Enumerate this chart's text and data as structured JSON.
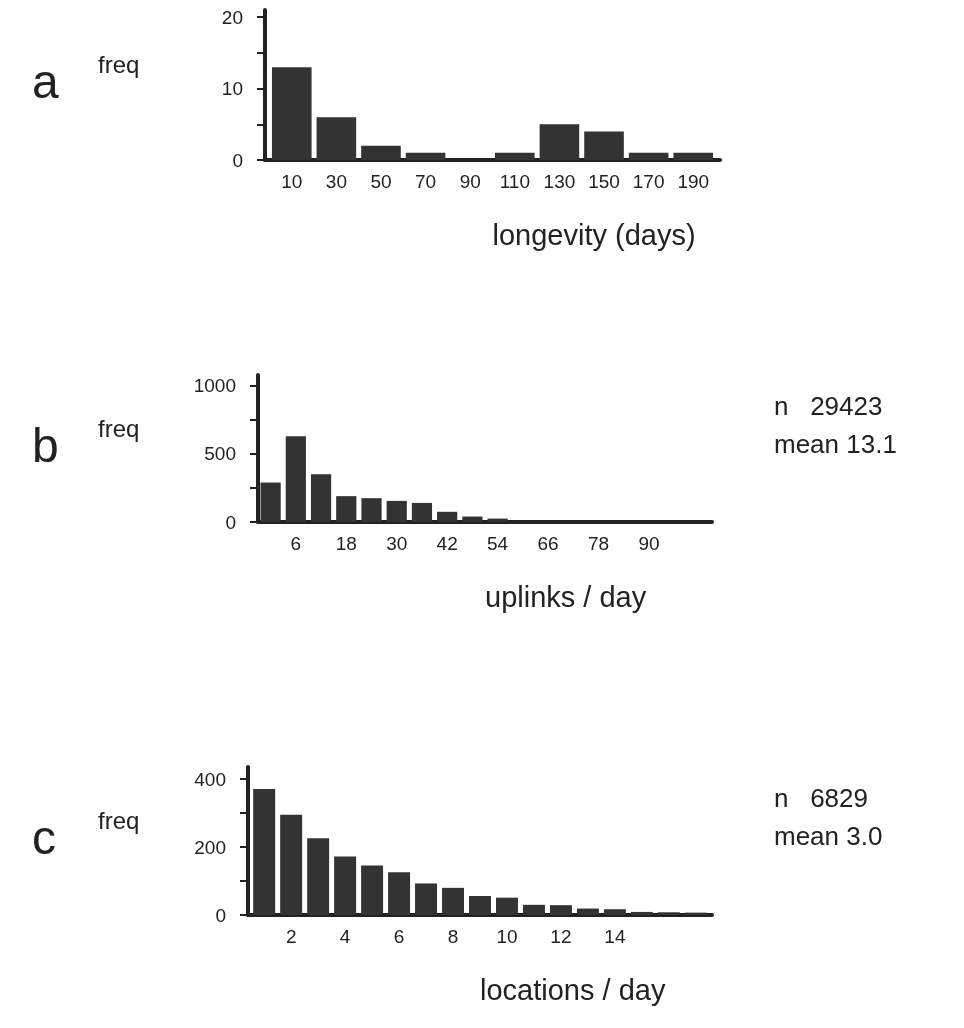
{
  "chart_data": [
    {
      "type": "histogram",
      "title": "a",
      "ylabel": "freq",
      "xlabel": "longevity (days)",
      "color": "#333333",
      "bins": [
        0,
        20,
        40,
        60,
        80,
        100,
        120,
        140,
        160,
        180,
        200
      ],
      "values": [
        13,
        6,
        2,
        1,
        0,
        1,
        5,
        4,
        1,
        1
      ],
      "xlim": [
        -2,
        202
      ],
      "xticks": [
        10,
        30,
        50,
        70,
        90,
        110,
        130,
        150,
        170,
        190
      ],
      "ylim": [
        0,
        21
      ],
      "yticks": [
        0,
        {
          "value": 5,
          "label": null
        },
        10,
        {
          "value": 15,
          "label": null
        },
        20
      ],
      "grid": false
    },
    {
      "type": "histogram",
      "title": "b",
      "ylabel": "freq",
      "xlabel": "uplinks / day",
      "color": "#333333",
      "bins": [
        -3,
        3,
        9,
        15,
        21,
        27,
        33,
        39,
        45,
        51,
        57,
        63,
        69,
        75,
        81,
        87,
        93,
        99
      ],
      "values": [
        290,
        630,
        350,
        190,
        175,
        155,
        140,
        75,
        40,
        25,
        null,
        null,
        null,
        null,
        null,
        null,
        null
      ],
      "xlim": [
        -3,
        105
      ],
      "xticks": [
        6,
        18,
        30,
        42,
        54,
        66,
        78,
        90
      ],
      "ylim": [
        0,
        1080
      ],
      "yticks": [
        0,
        {
          "value": 250,
          "label": null
        },
        500,
        {
          "value": 750,
          "label": null
        },
        1000
      ],
      "grid": false,
      "annotations": [
        "n   29423",
        "mean 13.1"
      ]
    },
    {
      "type": "histogram",
      "title": "c",
      "ylabel": "freq",
      "xlabel": "locations / day",
      "color": "#333333",
      "bins": [
        0.5,
        1.5,
        2.5,
        3.5,
        4.5,
        5.5,
        6.5,
        7.5,
        8.5,
        9.5,
        10.5,
        11.5,
        12.5,
        13.5,
        14.5,
        15.5,
        16.5,
        17.5
      ],
      "values": [
        371,
        295,
        226,
        172,
        146,
        126,
        93,
        80,
        56,
        51,
        30,
        29,
        19,
        17,
        9,
        8,
        7
      ],
      "xlim": [
        0.4,
        17.6
      ],
      "xticks": [
        2,
        4,
        6,
        8,
        10,
        12,
        14
      ],
      "ylim": [
        0,
        436
      ],
      "yticks": [
        0,
        {
          "value": 100,
          "label": null
        },
        200,
        {
          "value": 300,
          "label": null
        },
        400
      ],
      "grid": false,
      "annotations": [
        "n   6829",
        "mean 3.0"
      ]
    }
  ]
}
